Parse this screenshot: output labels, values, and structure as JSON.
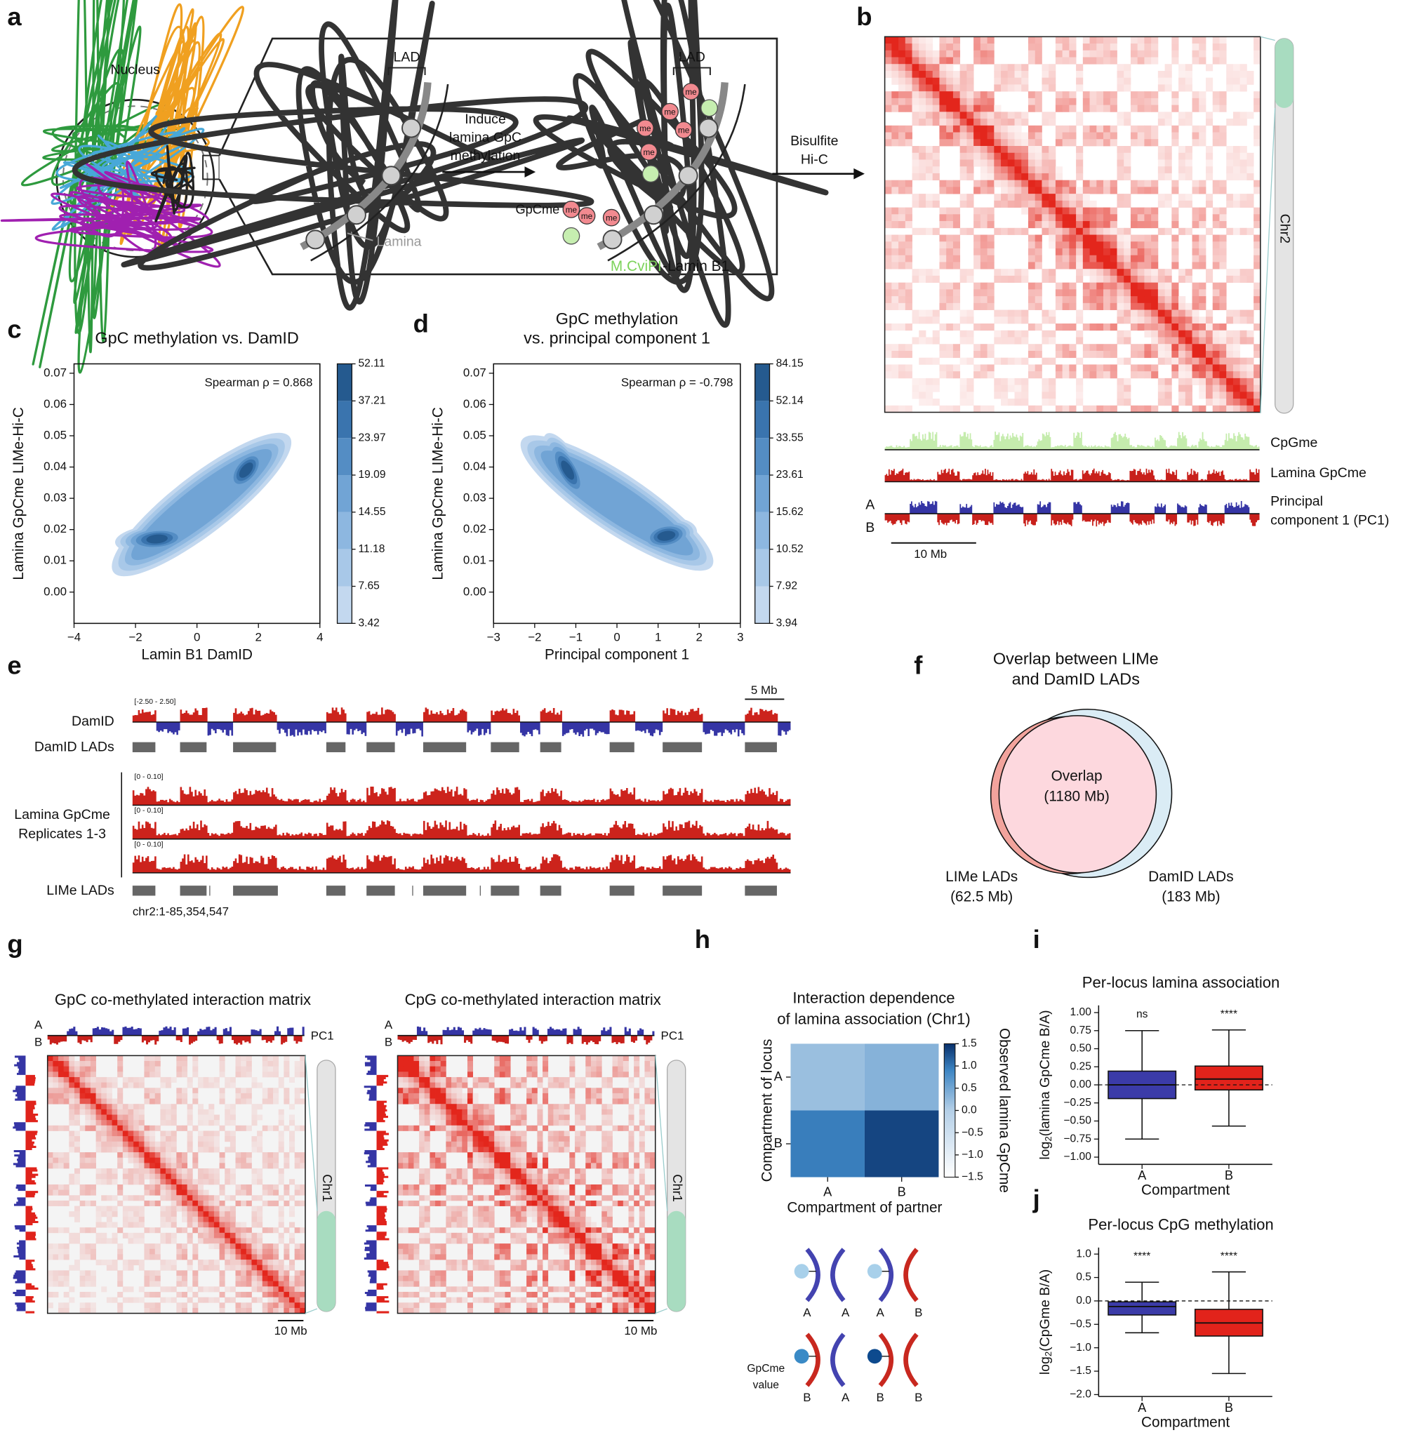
{
  "panels": {
    "labels": [
      "a",
      "b",
      "c",
      "d",
      "e",
      "f",
      "g",
      "h",
      "i",
      "j"
    ]
  },
  "a": {
    "nucleus": "Nucleus",
    "lad": [
      "LAD",
      "LAD"
    ],
    "induce": [
      "Induce",
      "lamina GpC",
      "methylation"
    ],
    "lamina": "Lamina",
    "gpcme": "GpCme",
    "me": "me",
    "enzyme": "M.CviPI",
    "fusion": "-Lamin B1",
    "bisulfite": [
      "Bisulfite",
      "Hi-C"
    ]
  },
  "b": {
    "chromosome": "Chr2",
    "tracks": [
      "CpGme",
      "Lamina GpCme"
    ],
    "pc1": [
      "Principal",
      "component 1 (PC1)"
    ],
    "compartments": [
      "A",
      "B"
    ],
    "scale": "10 Mb"
  },
  "e": {
    "damid": "DamID",
    "damid_range": "[-2.50 - 2.50]",
    "damid_lads": "DamID LADs",
    "lamina": [
      "Lamina GpCme",
      "Replicates 1-3"
    ],
    "ranges": [
      "[0 - 0.10]",
      "[0 - 0.10]",
      "[0 - 0.10]"
    ],
    "lime_lads": "LIMe LADs",
    "locus": "chr2:1-85,354,547",
    "scale": "5 Mb"
  },
  "f": {
    "title": [
      "Overlap between LIMe",
      "and DamID LADs"
    ],
    "overlap": [
      "Overlap",
      "(1180 Mb)"
    ],
    "lime": [
      "LIMe LADs",
      "(62.5 Mb)"
    ],
    "damid": [
      "DamID LADs",
      "(183 Mb)"
    ]
  },
  "g": {
    "titles": [
      "GpC co-methylated interaction matrix",
      "CpG co-methylated interaction matrix"
    ],
    "compartments": [
      "A",
      "B"
    ],
    "pc1": "PC1",
    "chromosome": "Chr1",
    "scale": "10 Mb"
  },
  "h_cartoon": {
    "pairs": [
      [
        "A",
        "A"
      ],
      [
        "A",
        "B"
      ],
      [
        "B",
        "A"
      ],
      [
        "B",
        "B"
      ]
    ],
    "legend": [
      "GpCme",
      "value"
    ]
  },
  "chart_data": [
    {
      "type": "kde_contour",
      "title": [
        "GpC methylation vs. DamID"
      ],
      "xlabel": "Lamin B1 DamID",
      "ylabel": "Lamina GpCme LIMe-Hi-C",
      "annotation": "Spearman ρ = 0.868",
      "xlim": [
        -4,
        4
      ],
      "xticks": [
        {
          "value": -4,
          "label": "−4"
        },
        {
          "value": -2,
          "label": "−2"
        },
        0,
        2,
        4
      ],
      "ylim": [
        -0.01,
        0.073
      ],
      "yticks": [
        {
          "value": 0,
          "label": "0.00"
        },
        {
          "value": 0.01,
          "label": "0.01"
        },
        {
          "value": 0.02,
          "label": "0.02"
        },
        {
          "value": 0.03,
          "label": "0.03"
        },
        {
          "value": 0.04,
          "label": "0.04"
        },
        {
          "value": 0.05,
          "label": "0.05"
        },
        {
          "value": 0.06,
          "label": "0.06"
        },
        {
          "value": 0.07,
          "label": "0.07"
        }
      ],
      "levels": [
        3.42,
        7.65,
        11.18,
        14.55,
        19.09,
        23.97,
        37.21,
        52.11
      ],
      "colors": [
        "#c3d8ef",
        "#a8c8e8",
        "#8db7e0",
        "#71a4d5",
        "#548dc4",
        "#3a74ae",
        "#255a8f"
      ],
      "peaks": [
        [
          -1.3,
          0.017
        ],
        [
          1.6,
          0.039
        ]
      ]
    },
    {
      "type": "kde_contour",
      "title": [
        "GpC methylation",
        "vs. principal component 1"
      ],
      "xlabel": "Principal component 1",
      "ylabel": "Lamina GpCme LIMe-Hi-C",
      "annotation": "Spearman ρ = -0.798",
      "xlim": [
        -3,
        3
      ],
      "xticks": [
        {
          "value": -3,
          "label": "−3"
        },
        {
          "value": -2,
          "label": "−2"
        },
        {
          "value": -1,
          "label": "−1"
        },
        0,
        1,
        2,
        3
      ],
      "ylim": [
        -0.01,
        0.073
      ],
      "yticks": [
        {
          "value": 0,
          "label": "0.00"
        },
        {
          "value": 0.01,
          "label": "0.01"
        },
        {
          "value": 0.02,
          "label": "0.02"
        },
        {
          "value": 0.03,
          "label": "0.03"
        },
        {
          "value": 0.04,
          "label": "0.04"
        },
        {
          "value": 0.05,
          "label": "0.05"
        },
        {
          "value": 0.06,
          "label": "0.06"
        },
        {
          "value": 0.07,
          "label": "0.07"
        }
      ],
      "levels": [
        3.94,
        7.92,
        10.52,
        15.62,
        23.61,
        33.55,
        52.14,
        84.15
      ],
      "colors": [
        "#c3d8ef",
        "#a8c8e8",
        "#8db7e0",
        "#71a4d5",
        "#548dc4",
        "#3a74ae",
        "#255a8f"
      ],
      "peaks": [
        [
          -1.2,
          0.039
        ],
        [
          1.2,
          0.018
        ]
      ]
    },
    {
      "type": "heatmap",
      "title": [
        "Interaction dependence",
        "of lamina association (Chr1)"
      ],
      "xlabel": "Compartment of partner",
      "ylabel": "Compartment of locus",
      "colorbar_label": "Observed lamina GpCme",
      "categories": [
        "A",
        "B"
      ],
      "rows": [
        "A",
        "B"
      ],
      "values": [
        [
          0.2,
          0.35
        ],
        [
          0.95,
          1.35
        ]
      ],
      "clim": [
        -1.5,
        1.5
      ],
      "cticks": [
        1.5,
        {
          "value": 1,
          "label": "1.0"
        },
        0.5,
        {
          "value": 0,
          "label": "0.0"
        },
        {
          "value": -0.5,
          "label": "−0.5"
        },
        {
          "value": -1,
          "label": "−1.0"
        },
        {
          "value": -1.5,
          "label": "−1.5"
        }
      ]
    },
    {
      "type": "box",
      "title": "Per-locus lamina association",
      "ylabel": {
        "base": "log",
        "sub": "2",
        "rest": "(lamina GpCme B/A)"
      },
      "xlabel": "Compartment",
      "categories": [
        "A",
        "B"
      ],
      "boxes": [
        {
          "whislo": -0.75,
          "q1": -0.19,
          "med": 0,
          "q3": 0.19,
          "whishi": 0.75
        },
        {
          "whislo": -0.57,
          "q1": -0.07,
          "med": 0.08,
          "q3": 0.26,
          "whishi": 0.76
        }
      ],
      "colors": [
        "#3b3ba8",
        "#e2231b"
      ],
      "annotations": [
        "ns",
        "****"
      ],
      "reference_line": 0,
      "ylim": [
        -1.1,
        1.1
      ],
      "yticks": [
        {
          "value": 1,
          "label": "1.00"
        },
        {
          "value": 0.75,
          "label": "0.75"
        },
        {
          "value": 0.5,
          "label": "0.50"
        },
        {
          "value": 0.25,
          "label": "0.25"
        },
        {
          "value": 0,
          "label": "0.00"
        },
        {
          "value": -0.25,
          "label": "−0.25"
        },
        {
          "value": -0.5,
          "label": "−0.50"
        },
        {
          "value": -0.75,
          "label": "−0.75"
        },
        {
          "value": -1,
          "label": "−1.00"
        }
      ]
    },
    {
      "type": "box",
      "title": "Per-locus CpG methylation",
      "ylabel": {
        "base": "log",
        "sub": "2",
        "rest": "(CpGme B/A)"
      },
      "xlabel": "Compartment",
      "categories": [
        "A",
        "B"
      ],
      "boxes": [
        {
          "whislo": -0.68,
          "q1": -0.3,
          "med": -0.12,
          "q3": -0.02,
          "whishi": 0.4
        },
        {
          "whislo": -1.55,
          "q1": -0.75,
          "med": -0.47,
          "q3": -0.18,
          "whishi": 0.62
        }
      ],
      "colors": [
        "#3b3ba8",
        "#e2231b"
      ],
      "annotations": [
        "****",
        "****"
      ],
      "reference_line": 0,
      "ylim": [
        -2.04,
        1.14
      ],
      "yticks": [
        {
          "value": 1,
          "label": "1.0"
        },
        0.5,
        {
          "value": 0,
          "label": "0.0"
        },
        {
          "value": -0.5,
          "label": "−0.5"
        },
        {
          "value": -1,
          "label": "−1.0"
        },
        {
          "value": -1.5,
          "label": "−1.5"
        },
        {
          "value": -2,
          "label": "−2.0"
        }
      ]
    }
  ]
}
